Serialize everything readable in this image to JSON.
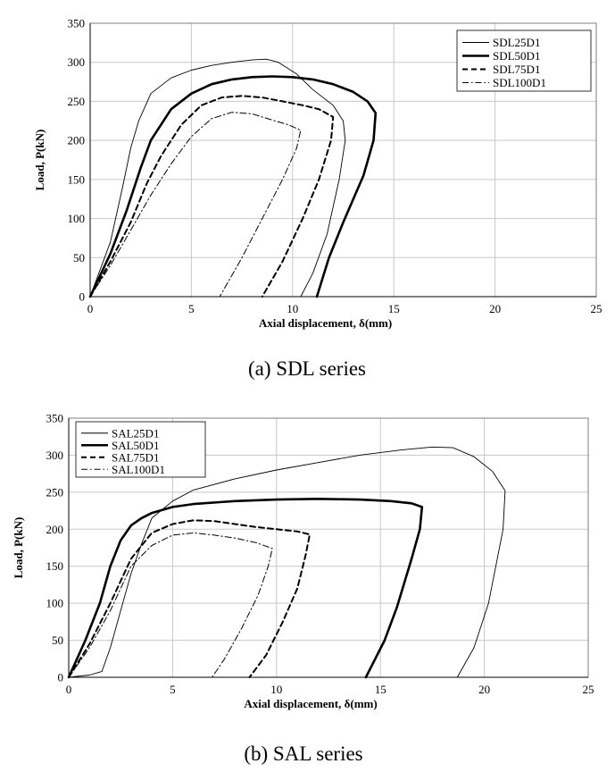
{
  "chart_data": [
    {
      "type": "line",
      "title": "",
      "caption": "(a) SDL series",
      "xlabel": "Axial displacement, δ(mm)",
      "ylabel": "Load, P(kN)",
      "xlim": [
        0,
        25
      ],
      "ylim": [
        0,
        350
      ],
      "xticks": [
        "0",
        "5",
        "10",
        "15",
        "20",
        "25"
      ],
      "yticks": [
        "0",
        "50",
        "100",
        "150",
        "200",
        "250",
        "300",
        "350"
      ],
      "grid": true,
      "legend_position": "top-right",
      "series": [
        {
          "name": "SDL25D1",
          "style": "thin",
          "x": [
            0,
            1.0,
            1.6,
            2.0,
            2.4,
            3.0,
            4.0,
            5.0,
            6.0,
            7.0,
            8.0,
            8.7,
            9.3,
            10.2,
            11.0,
            12.0,
            12.5,
            12.6,
            12.3,
            11.7,
            11.0,
            10.4
          ],
          "y": [
            0,
            70,
            140,
            190,
            225,
            260,
            280,
            290,
            296,
            300,
            303,
            304,
            300,
            285,
            265,
            245,
            225,
            200,
            150,
            80,
            30,
            0
          ]
        },
        {
          "name": "SDL50D1",
          "style": "thick",
          "x": [
            0,
            1.0,
            1.8,
            2.5,
            3.0,
            4.0,
            5.0,
            6.0,
            7.0,
            8.0,
            9.0,
            10.0,
            11.0,
            12.0,
            13.0,
            13.7,
            14.1,
            14.0,
            13.5,
            12.5,
            11.8,
            11.2
          ],
          "y": [
            0,
            55,
            110,
            165,
            200,
            240,
            260,
            272,
            278,
            281,
            282,
            281,
            278,
            272,
            262,
            250,
            235,
            200,
            155,
            95,
            50,
            0
          ]
        },
        {
          "name": "SDL75D1",
          "style": "dashed",
          "x": [
            0,
            1.0,
            2.0,
            2.8,
            3.5,
            4.5,
            5.5,
            6.5,
            7.5,
            8.5,
            9.5,
            10.5,
            11.3,
            12.0,
            11.9,
            11.3,
            10.5,
            9.5,
            8.5
          ],
          "y": [
            0,
            45,
            95,
            145,
            180,
            220,
            245,
            255,
            257,
            255,
            250,
            245,
            240,
            230,
            200,
            150,
            100,
            45,
            0
          ]
        },
        {
          "name": "SDL100D1",
          "style": "dashdot",
          "x": [
            0,
            1.0,
            2.0,
            3.0,
            4.0,
            5.0,
            6.0,
            7.0,
            8.0,
            9.0,
            9.8,
            10.4,
            10.2,
            9.5,
            8.5,
            7.5,
            6.4
          ],
          "y": [
            0,
            40,
            85,
            130,
            170,
            205,
            228,
            236,
            234,
            226,
            220,
            213,
            190,
            150,
            100,
            50,
            0
          ]
        }
      ]
    },
    {
      "type": "line",
      "title": "",
      "caption": "(b) SAL series",
      "xlabel": "Axial displacement, δ(mm)",
      "ylabel": "Load, P(kN)",
      "xlim": [
        0,
        25
      ],
      "ylim": [
        0,
        350
      ],
      "xticks": [
        "0",
        "5",
        "10",
        "15",
        "20",
        "25"
      ],
      "yticks": [
        "0",
        "50",
        "100",
        "150",
        "200",
        "250",
        "300",
        "350"
      ],
      "grid": true,
      "legend_position": "top-left",
      "series": [
        {
          "name": "SAL25D1",
          "style": "thin",
          "x": [
            0,
            1.0,
            1.6,
            2.0,
            2.5,
            3.0,
            3.5,
            4.0,
            5.0,
            6.0,
            8.0,
            10.0,
            12.0,
            14.0,
            16.0,
            17.5,
            18.5,
            19.5,
            20.4,
            21.0,
            20.9,
            20.2,
            19.5,
            18.7
          ],
          "y": [
            0,
            3,
            8,
            40,
            90,
            140,
            180,
            215,
            238,
            253,
            268,
            280,
            290,
            300,
            307,
            311,
            310,
            298,
            278,
            252,
            200,
            100,
            40,
            0
          ]
        },
        {
          "name": "SAL50D1",
          "style": "thick",
          "x": [
            0,
            0.8,
            1.5,
            2.0,
            2.5,
            3.0,
            3.5,
            4.0,
            5.0,
            6.0,
            8.0,
            10.0,
            12.0,
            14.0,
            15.5,
            16.5,
            17.0,
            16.9,
            16.5,
            15.8,
            15.2,
            14.3
          ],
          "y": [
            0,
            50,
            100,
            150,
            185,
            205,
            215,
            222,
            230,
            234,
            238,
            240,
            241,
            240,
            238,
            235,
            230,
            200,
            160,
            95,
            50,
            0
          ]
        },
        {
          "name": "SAL75D1",
          "style": "dashed",
          "x": [
            0,
            1.0,
            2.0,
            3.0,
            4.0,
            5.0,
            6.0,
            7.0,
            8.0,
            9.0,
            10.0,
            11.0,
            11.6,
            11.4,
            11.0,
            10.3,
            9.5,
            8.7
          ],
          "y": [
            0,
            45,
            100,
            160,
            195,
            207,
            212,
            211,
            207,
            203,
            200,
            197,
            193,
            165,
            120,
            75,
            30,
            0
          ]
        },
        {
          "name": "SAL100D1",
          "style": "dashdot",
          "x": [
            0,
            1.0,
            2.0,
            3.0,
            4.0,
            5.0,
            6.0,
            7.0,
            8.0,
            9.0,
            9.8,
            9.6,
            9.1,
            8.3,
            7.5,
            6.9
          ],
          "y": [
            0,
            40,
            90,
            150,
            178,
            192,
            195,
            192,
            188,
            182,
            174,
            150,
            110,
            65,
            25,
            0
          ]
        }
      ]
    }
  ]
}
